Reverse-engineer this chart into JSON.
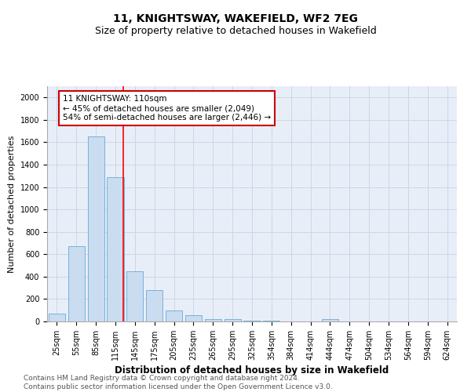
{
  "title": "11, KNIGHTSWAY, WAKEFIELD, WF2 7EG",
  "subtitle": "Size of property relative to detached houses in Wakefield",
  "xlabel": "Distribution of detached houses by size in Wakefield",
  "ylabel": "Number of detached properties",
  "categories": [
    "25sqm",
    "55sqm",
    "85sqm",
    "115sqm",
    "145sqm",
    "175sqm",
    "205sqm",
    "235sqm",
    "265sqm",
    "295sqm",
    "325sqm",
    "354sqm",
    "384sqm",
    "414sqm",
    "444sqm",
    "474sqm",
    "504sqm",
    "534sqm",
    "564sqm",
    "594sqm",
    "624sqm"
  ],
  "values": [
    70,
    670,
    1650,
    1290,
    450,
    280,
    100,
    55,
    22,
    20,
    10,
    5,
    0,
    0,
    20,
    0,
    0,
    0,
    0,
    0,
    0
  ],
  "bar_color": "#c9dcf0",
  "bar_edge_color": "#6aaad4",
  "annotation_line1": "11 KNIGHTSWAY: 110sqm",
  "annotation_line2": "← 45% of detached houses are smaller (2,049)",
  "annotation_line3": "54% of semi-detached houses are larger (2,446) →",
  "annotation_box_color": "#ffffff",
  "annotation_box_edge_color": "#cc0000",
  "grid_color": "#ccd6e8",
  "background_color": "#e8eef8",
  "ylim": [
    0,
    2100
  ],
  "yticks": [
    0,
    200,
    400,
    600,
    800,
    1000,
    1200,
    1400,
    1600,
    1800,
    2000
  ],
  "footer_line1": "Contains HM Land Registry data © Crown copyright and database right 2024.",
  "footer_line2": "Contains public sector information licensed under the Open Government Licence v3.0.",
  "title_fontsize": 10,
  "subtitle_fontsize": 9,
  "xlabel_fontsize": 8.5,
  "ylabel_fontsize": 8,
  "tick_fontsize": 7,
  "annotation_fontsize": 7.5,
  "footer_fontsize": 6.5,
  "red_line_index": 3.42
}
